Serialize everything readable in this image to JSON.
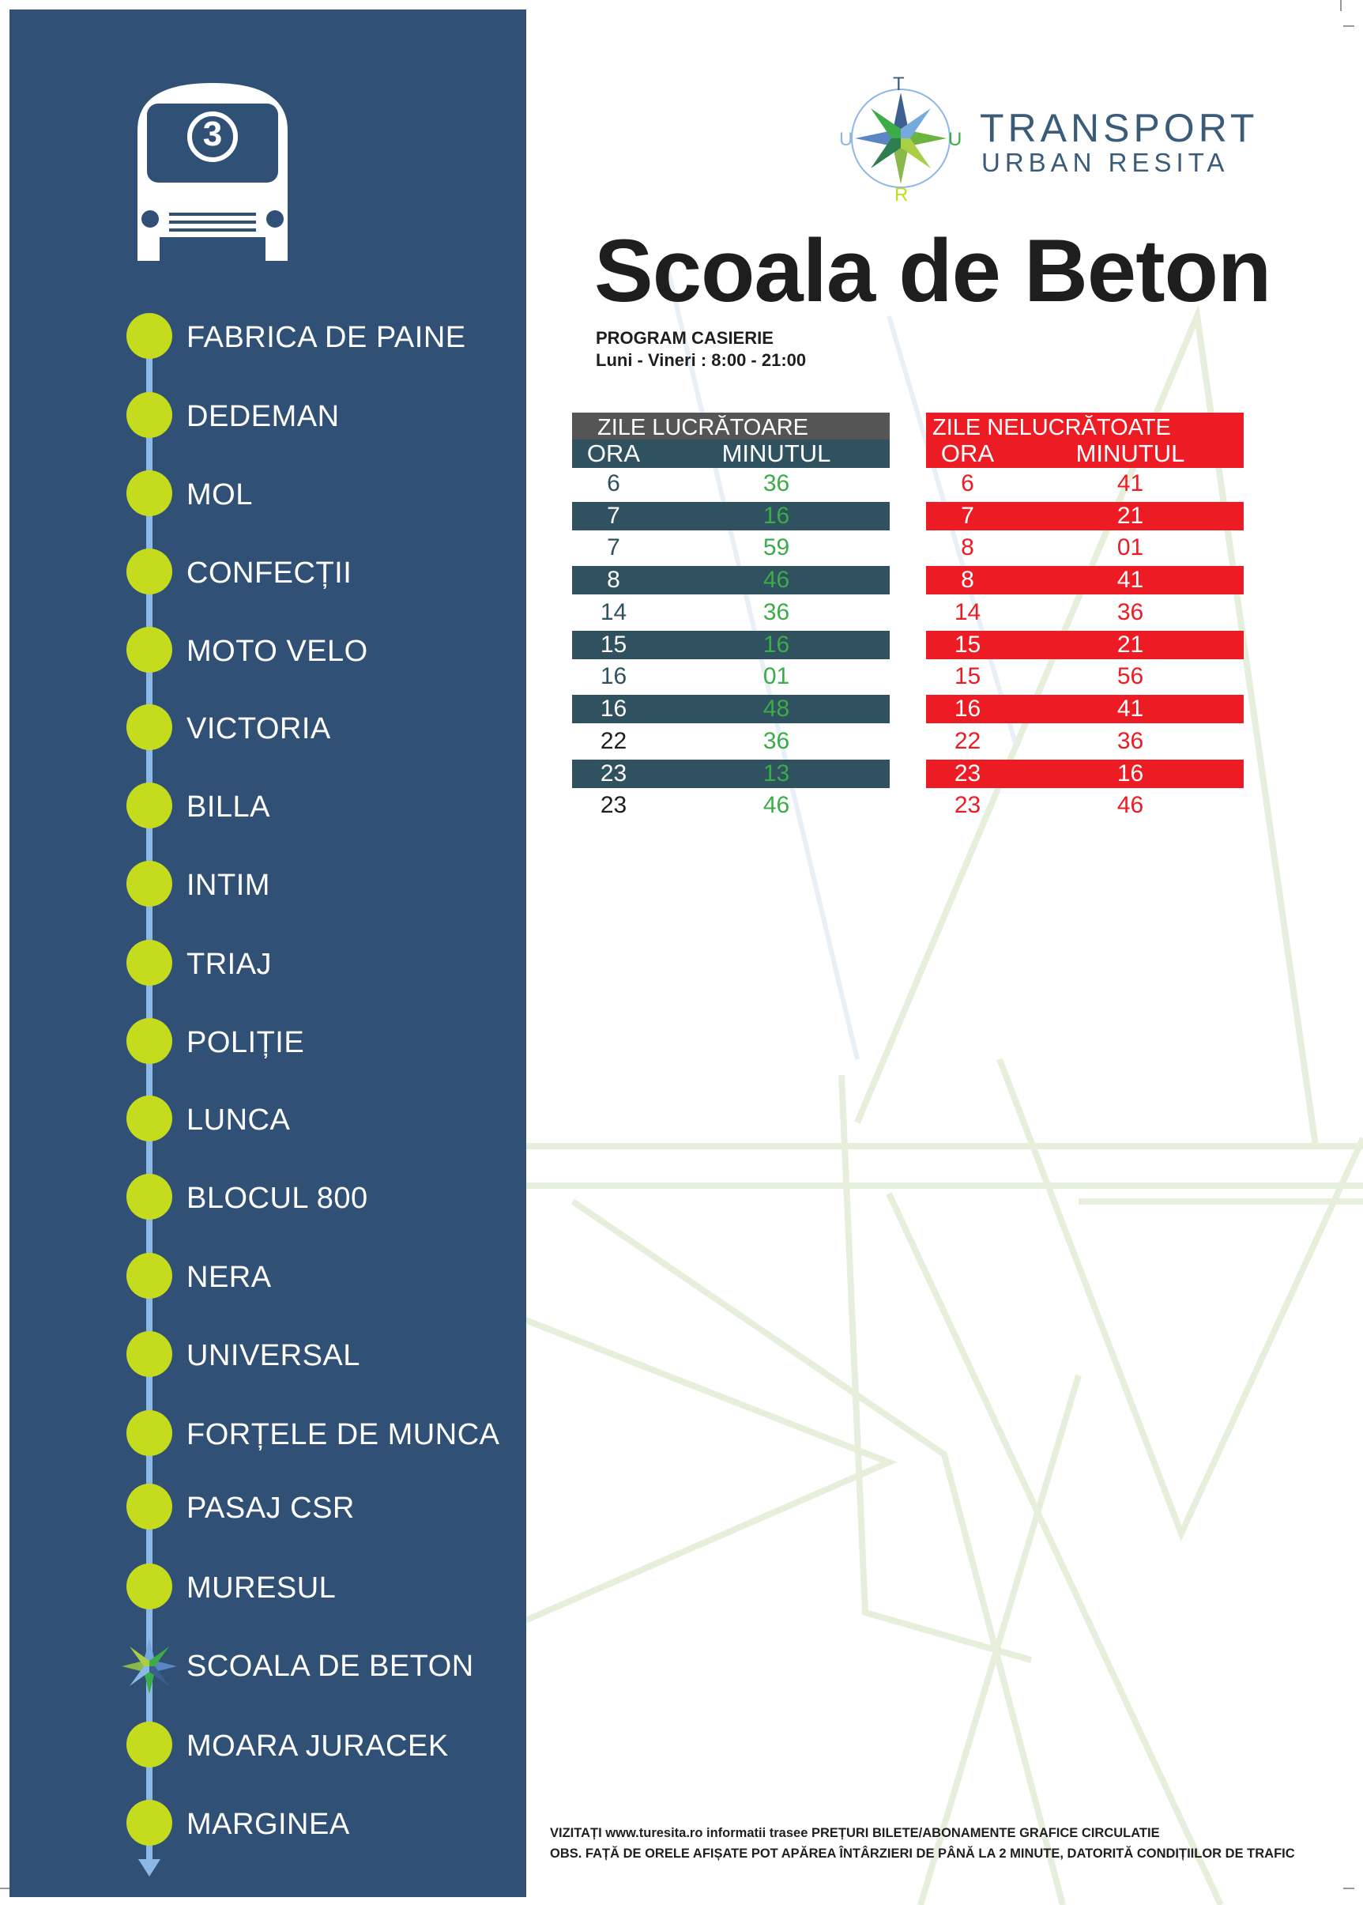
{
  "route_number": "3",
  "brand": {
    "line1": "TRANSPORT",
    "line2": "URBAN RESITA",
    "compass_letters": [
      "T",
      "U",
      "U",
      "R"
    ]
  },
  "stop_title": "Scoala de Beton",
  "cashier": {
    "title": "PROGRAM CASIERIE",
    "hours": "Luni - Vineri : 8:00 - 21:00"
  },
  "stops": [
    {
      "name": "FABRICA DE PAINE",
      "current": false
    },
    {
      "name": "DEDEMAN",
      "current": false
    },
    {
      "name": "MOL",
      "current": false
    },
    {
      "name": "CONFECȚII",
      "current": false
    },
    {
      "name": "MOTO VELO",
      "current": false
    },
    {
      "name": "VICTORIA",
      "current": false
    },
    {
      "name": "BILLA",
      "current": false
    },
    {
      "name": "INTIM",
      "current": false
    },
    {
      "name": "TRIAJ",
      "current": false
    },
    {
      "name": "POLIȚIE",
      "current": false
    },
    {
      "name": "LUNCA",
      "current": false
    },
    {
      "name": "BLOCUL 800",
      "current": false
    },
    {
      "name": "NERA",
      "current": false
    },
    {
      "name": "UNIVERSAL",
      "current": false
    },
    {
      "name": "FORȚELE DE MUNCA",
      "current": false
    },
    {
      "name": "PASAJ CSR",
      "current": false
    },
    {
      "name": "MURESUL",
      "current": false
    },
    {
      "name": "SCOALA DE BETON",
      "current": true
    },
    {
      "name": "MOARA JURACEK",
      "current": false
    },
    {
      "name": "MARGINEA",
      "current": false
    }
  ],
  "working_days": {
    "title": "ZILE LUCRĂTOARE",
    "col_hour": "ORA",
    "col_minute": "MINUTUL",
    "rows": [
      {
        "h": "6",
        "m": "36"
      },
      {
        "h": "7",
        "m": "16"
      },
      {
        "h": "7",
        "m": "59"
      },
      {
        "h": "8",
        "m": "46"
      },
      {
        "h": "14",
        "m": "36"
      },
      {
        "h": "15",
        "m": "16"
      },
      {
        "h": "16",
        "m": "01"
      },
      {
        "h": "16",
        "m": "48"
      },
      {
        "h": "22",
        "m": "36"
      },
      {
        "h": "23",
        "m": "13"
      },
      {
        "h": "23",
        "m": "46"
      }
    ]
  },
  "non_working_days": {
    "title": "ZILE NELUCRĂTOATE",
    "col_hour": "ORA",
    "col_minute": "MINUTUL",
    "rows": [
      {
        "h": "6",
        "m": "41"
      },
      {
        "h": "7",
        "m": "21"
      },
      {
        "h": "8",
        "m": "01"
      },
      {
        "h": "8",
        "m": "41"
      },
      {
        "h": "14",
        "m": "36"
      },
      {
        "h": "15",
        "m": "21"
      },
      {
        "h": "15",
        "m": "56"
      },
      {
        "h": "16",
        "m": "41"
      },
      {
        "h": "22",
        "m": "36"
      },
      {
        "h": "23",
        "m": "16"
      },
      {
        "h": "23",
        "m": "46"
      }
    ]
  },
  "footer": {
    "line1": "VIZITAȚI www.turesita.ro informatii trasee PREȚURI BILETE/ABONAMENTE GRAFICE CIRCULATIE",
    "line2": "OBS. FAȚĂ DE ORELE AFIȘATE POT APĂREA ÎNTÂRZIERI DE PÂNĂ LA 2 MINUTE, DATORITĂ CONDIȚIILOR DE TRAFIC"
  },
  "colors": {
    "sidebar": "#315076",
    "stop_dot": "#c5dc1e",
    "route_line": "#8cb8e8",
    "working_header": "#2f5160",
    "working_title": "#555555",
    "nonworking": "#ed1c24",
    "minute_green": "#3bac48"
  }
}
